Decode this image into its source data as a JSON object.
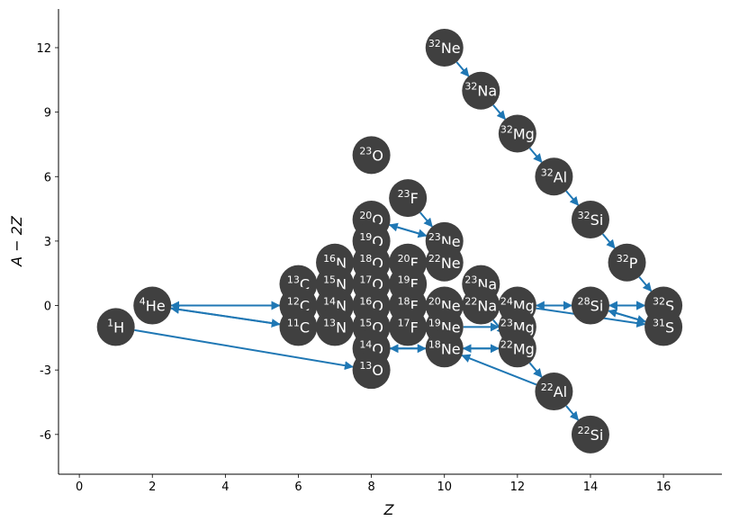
{
  "chart_data": {
    "type": "network",
    "x_label": "Z",
    "y_label": "A − 2Z",
    "x": [
      1,
      2,
      6,
      6,
      6,
      7,
      7,
      7,
      7,
      8,
      8,
      8,
      8,
      8,
      8,
      8,
      8,
      8,
      9,
      9,
      9,
      9,
      9,
      10,
      10,
      10,
      10,
      10,
      10,
      11,
      11,
      11,
      12,
      12,
      12,
      12,
      13,
      13,
      14,
      14,
      14,
      15,
      16,
      16
    ],
    "y": [
      -1,
      0,
      1,
      0,
      -1,
      2,
      1,
      0,
      -1,
      7,
      4,
      3,
      2,
      1,
      0,
      -1,
      -2,
      -3,
      5,
      2,
      1,
      0,
      -1,
      12,
      3,
      2,
      0,
      -1,
      -2,
      10,
      1,
      0,
      8,
      0,
      -1,
      -2,
      6,
      -4,
      4,
      0,
      -6,
      2,
      0,
      -1
    ],
    "mass": [
      1,
      4,
      13,
      12,
      11,
      16,
      15,
      14,
      13,
      23,
      20,
      19,
      18,
      17,
      16,
      15,
      14,
      13,
      23,
      20,
      19,
      18,
      17,
      32,
      23,
      22,
      20,
      19,
      18,
      32,
      23,
      22,
      32,
      24,
      23,
      22,
      32,
      22,
      32,
      28,
      22,
      32,
      32,
      31
    ],
    "symbol": [
      "H",
      "He",
      "C",
      "C",
      "C",
      "N",
      "N",
      "N",
      "N",
      "O",
      "O",
      "O",
      "O",
      "O",
      "O",
      "O",
      "O",
      "O",
      "F",
      "F",
      "F",
      "F",
      "F",
      "Ne",
      "Ne",
      "Ne",
      "Ne",
      "Ne",
      "Ne",
      "Na",
      "Na",
      "Na",
      "Mg",
      "Mg",
      "Mg",
      "Mg",
      "Al",
      "Al",
      "Si",
      "Si",
      "Si",
      "P",
      "S",
      "S"
    ],
    "links": [
      [
        0,
        17
      ],
      [
        1,
        3
      ],
      [
        3,
        1
      ],
      [
        1,
        4
      ],
      [
        4,
        1
      ],
      [
        23,
        29
      ],
      [
        29,
        32
      ],
      [
        32,
        36
      ],
      [
        36,
        38
      ],
      [
        38,
        41
      ],
      [
        41,
        42
      ],
      [
        18,
        24
      ],
      [
        10,
        24
      ],
      [
        24,
        10
      ],
      [
        33,
        39
      ],
      [
        39,
        33
      ],
      [
        39,
        42
      ],
      [
        42,
        39
      ],
      [
        39,
        43
      ],
      [
        43,
        39
      ],
      [
        33,
        43
      ],
      [
        33,
        42
      ],
      [
        35,
        37
      ],
      [
        37,
        40
      ],
      [
        37,
        28
      ],
      [
        31,
        35
      ],
      [
        28,
        35
      ],
      [
        35,
        28
      ],
      [
        27,
        34
      ],
      [
        16,
        28
      ],
      [
        28,
        16
      ],
      [
        15,
        27
      ],
      [
        26,
        33
      ],
      [
        30,
        34
      ]
    ],
    "node_color": "#404040",
    "link_color": "#1f77b4",
    "xlim": [
      -0.57,
      17.6
    ],
    "ylim": [
      -7.85,
      13.8
    ],
    "xticks": [
      0,
      2,
      4,
      6,
      8,
      10,
      12,
      14,
      16
    ],
    "yticks": [
      -6,
      -3,
      0,
      3,
      6,
      9,
      12
    ]
  }
}
